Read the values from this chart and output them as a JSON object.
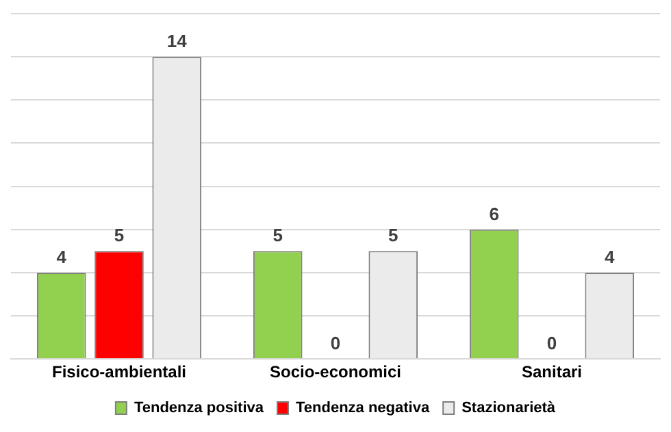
{
  "chart_data": {
    "type": "bar",
    "categories": [
      "Fisico-ambientali",
      "Socio-economici",
      "Sanitari"
    ],
    "series": [
      {
        "name": "Tendenza positiva",
        "color": "#92d050",
        "values": [
          4,
          5,
          6
        ]
      },
      {
        "name": "Tendenza negativa",
        "color": "#ff0000",
        "values": [
          5,
          0,
          0
        ]
      },
      {
        "name": "Stazionarietà",
        "color": "#ebebeb",
        "values": [
          14,
          5,
          4
        ]
      }
    ],
    "ylim": [
      0,
      16
    ],
    "yticks": [
      0,
      2,
      4,
      6,
      8,
      10,
      12,
      14,
      16
    ],
    "grid": "y",
    "tick_labels": "x",
    "legend": "bottom",
    "data_labels": true
  }
}
